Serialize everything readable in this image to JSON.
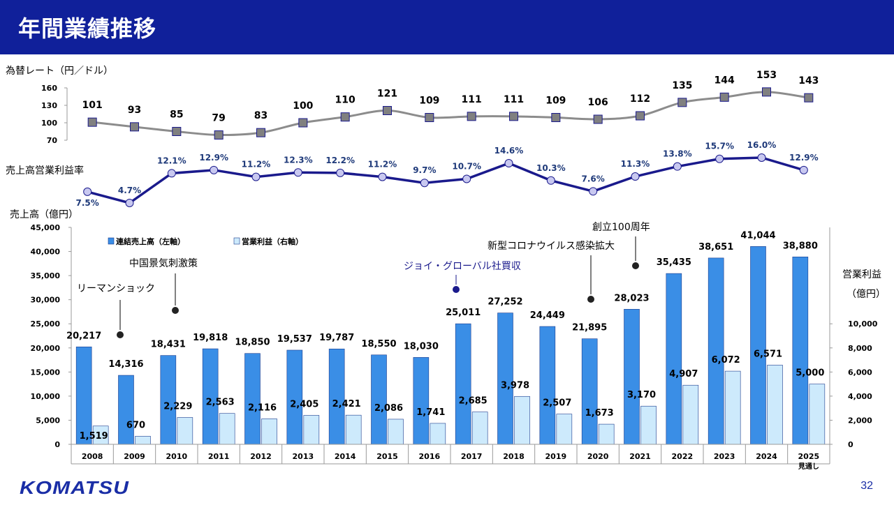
{
  "header": {
    "title": "年間業績推移"
  },
  "footer": {
    "logo": "KOMATSU",
    "page": "32"
  },
  "chart_data": {
    "type": "bar+line",
    "years": [
      "2008",
      "2009",
      "2010",
      "2011",
      "2012",
      "2013",
      "2014",
      "2015",
      "2016",
      "2017",
      "2018",
      "2019",
      "2020",
      "2021",
      "2022",
      "2023",
      "2024",
      "2025"
    ],
    "last_year_note": "見通し",
    "fx": {
      "label": "為替レート（円／ドル）",
      "ylim": [
        70,
        160
      ],
      "ticks": [
        70,
        100,
        130,
        160
      ],
      "values": [
        101,
        93,
        85,
        79,
        83,
        100,
        110,
        121,
        109,
        111,
        111,
        109,
        106,
        112,
        135,
        144,
        153,
        143
      ],
      "line_color": "#8c8c8c",
      "marker_color": "#808080"
    },
    "margin": {
      "label": "売上高営業利益率",
      "values": [
        7.5,
        4.7,
        12.1,
        12.9,
        11.2,
        12.3,
        12.2,
        11.2,
        9.7,
        10.7,
        14.6,
        10.3,
        7.6,
        11.3,
        13.8,
        15.7,
        16.0,
        12.9
      ],
      "labels": [
        "7.5%",
        "4.7%",
        "12.1%",
        "12.9%",
        "11.2%",
        "12.3%",
        "12.2%",
        "11.2%",
        "9.7%",
        "10.7%",
        "14.6%",
        "10.3%",
        "7.6%",
        "11.3%",
        "13.8%",
        "15.7%",
        "16.0%",
        "12.9%"
      ],
      "line_color": "#1a1a8c",
      "marker_color": "#c8c8f0"
    },
    "sales": {
      "legend": "連結売上高（左軸）",
      "axis_label": "売上高（億円）",
      "ylim": [
        0,
        45000
      ],
      "ticks": [
        0,
        5000,
        10000,
        15000,
        20000,
        25000,
        30000,
        35000,
        40000,
        45000
      ],
      "tick_labels": [
        "0",
        "5,000",
        "10,000",
        "15,000",
        "20,000",
        "25,000",
        "30,000",
        "35,000",
        "40,000",
        "45,000"
      ],
      "values": [
        20217,
        14316,
        18431,
        19818,
        18850,
        19537,
        19787,
        18550,
        18030,
        25011,
        27252,
        24449,
        21895,
        28023,
        35435,
        38651,
        41044,
        38880
      ],
      "labels": [
        "20,217",
        "14,316",
        "18,431",
        "19,818",
        "18,850",
        "19,537",
        "19,787",
        "18,550",
        "18,030",
        "25,011",
        "27,252",
        "24,449",
        "21,895",
        "28,023",
        "35,435",
        "38,651",
        "41,044",
        "38,880"
      ],
      "color": "#3a8ee6"
    },
    "profit": {
      "legend": "営業利益（右軸）",
      "axis_label_1": "営業利益",
      "axis_label_2": "（億円）",
      "ylim": [
        0,
        18000
      ],
      "ticks": [
        0,
        2000,
        4000,
        6000,
        8000,
        10000
      ],
      "tick_labels": [
        "0",
        "2,000",
        "4,000",
        "6,000",
        "8,000",
        "10,000"
      ],
      "values": [
        1519,
        670,
        2229,
        2563,
        2116,
        2405,
        2421,
        2086,
        1741,
        2685,
        3978,
        2507,
        1673,
        3170,
        4907,
        6072,
        6571,
        5000
      ],
      "labels": [
        "1,519",
        "670",
        "2,229",
        "2,563",
        "2,116",
        "2,405",
        "2,421",
        "2,086",
        "1,741",
        "2,685",
        "3,978",
        "2,507",
        "1,673",
        "3,170",
        "4,907",
        "6,072",
        "6,571",
        "5,000"
      ],
      "color": "#cdeafc"
    },
    "annotations": [
      {
        "text": "リーマンショック",
        "year_index": 1,
        "color": "#000000"
      },
      {
        "text": "中国景気刺激策",
        "year_index": 2,
        "color": "#000000"
      },
      {
        "text": "ジョイ・グローバル社買収",
        "year_index": 9,
        "color": "#1a1a8c"
      },
      {
        "text": "新型コロナウイルス感染拡大",
        "year_index": 12,
        "color": "#000000"
      },
      {
        "text": "創立100周年",
        "year_index": 13,
        "color": "#000000"
      }
    ]
  }
}
